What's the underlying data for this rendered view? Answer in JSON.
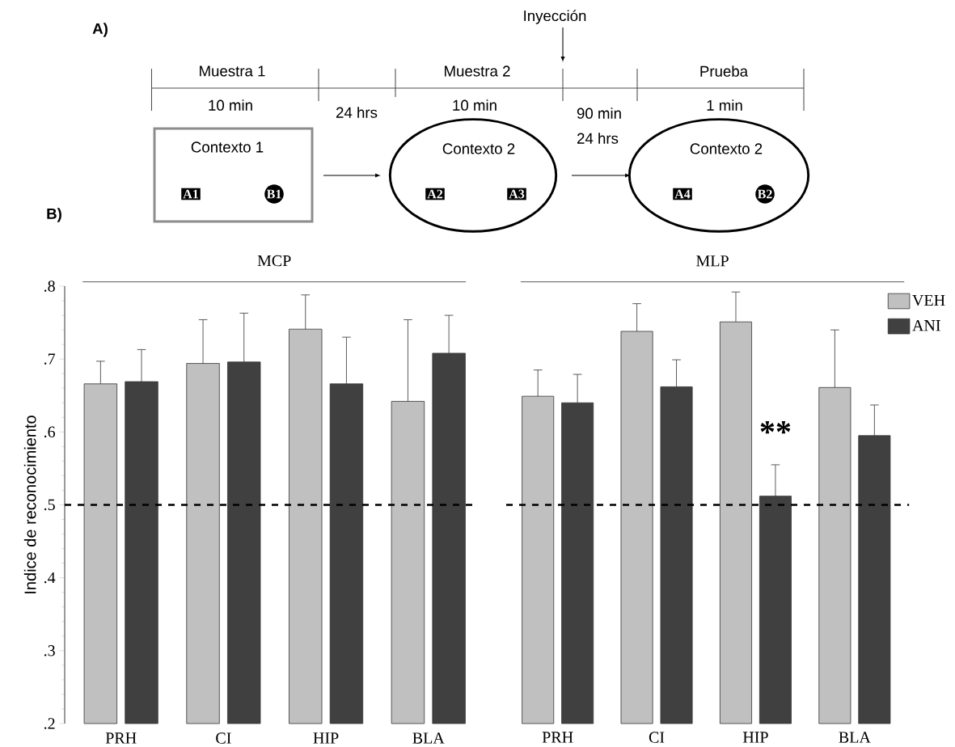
{
  "chart_data": [
    {
      "type": "other",
      "annotations": [
        "A)",
        "Inyección",
        "Muestra 1",
        "10 min",
        "24 hrs",
        "Muestra 2",
        "10 min",
        "90 min",
        "24 hrs",
        "Prueba",
        "1 min",
        "Contexto 1",
        "Contexto 2",
        "Contexto 2",
        "A1",
        "B1",
        "A2",
        "A3",
        "A4",
        "B2",
        "B)"
      ]
    },
    {
      "type": "bar",
      "title": "MCP",
      "ylabel": "Indice de reconocimiento",
      "categories": [
        "PRH",
        "CI",
        "HIP",
        "BLA"
      ],
      "series": [
        {
          "color": "#c0c0c0",
          "values": [
            0.666,
            0.694,
            0.741,
            0.642
          ],
          "errors": [
            [
              0.666,
              0.697
            ],
            [
              0.694,
              0.754
            ],
            [
              0.741,
              0.788
            ],
            [
              0.642,
              0.754
            ]
          ]
        },
        {
          "color": "#404040",
          "values": [
            0.669,
            0.696,
            0.666,
            0.708
          ],
          "errors": [
            [
              0.669,
              0.713
            ],
            [
              0.696,
              0.763
            ],
            [
              0.666,
              0.73
            ],
            [
              0.708,
              0.76
            ]
          ]
        }
      ],
      "ylim": [
        0.2,
        0.8
      ],
      "yticks": [
        {
          "value": 0.2,
          "label": ".2"
        },
        {
          "value": 0.3,
          "label": ".3"
        },
        {
          "value": 0.4,
          "label": ".4"
        },
        {
          "value": 0.5,
          "label": ".5"
        },
        {
          "value": 0.6,
          "label": ".6"
        },
        {
          "value": 0.7,
          "label": ".7"
        },
        {
          "value": 0.8,
          "label": ".8"
        }
      ],
      "ref_lines": [
        {
          "axis": "y",
          "value": 0.5,
          "color": "#000000",
          "line_style": "dashed"
        }
      ]
    },
    {
      "type": "bar",
      "title": "MLP",
      "categories": [
        "PRH",
        "CI",
        "HIP",
        "BLA"
      ],
      "series": [
        {
          "name": "VEH",
          "color": "#c0c0c0",
          "values": [
            0.649,
            0.738,
            0.751,
            0.661
          ],
          "errors": [
            [
              0.649,
              0.685
            ],
            [
              0.738,
              0.776
            ],
            [
              0.751,
              0.792
            ],
            [
              0.661,
              0.74
            ]
          ]
        },
        {
          "name": "ANI",
          "color": "#404040",
          "values": [
            0.64,
            0.662,
            0.512,
            0.595
          ],
          "errors": [
            [
              0.64,
              0.679
            ],
            [
              0.662,
              0.699
            ],
            [
              0.512,
              0.555
            ],
            [
              0.595,
              0.637
            ]
          ]
        }
      ],
      "ylim": [
        0.2,
        0.8
      ],
      "tick_labels": "x",
      "legend": "top right",
      "ref_lines": [
        {
          "axis": "y",
          "value": 0.5,
          "color": "#000000",
          "line_style": "dashed"
        }
      ],
      "annotations": [
        {
          "text": "**",
          "x": "HIP",
          "y": 0.6
        }
      ]
    }
  ]
}
